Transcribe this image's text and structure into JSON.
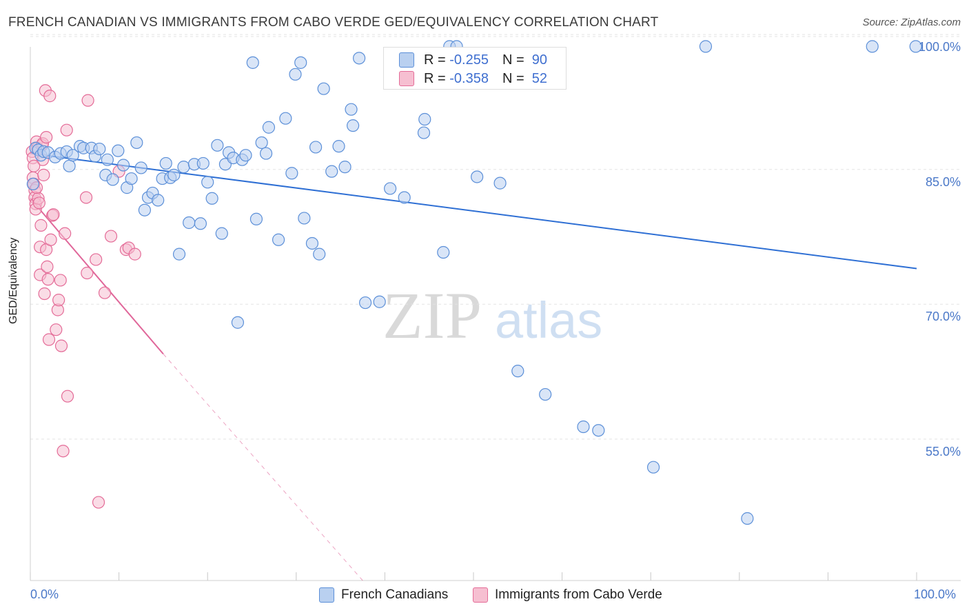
{
  "title": "FRENCH CANADIAN VS IMMIGRANTS FROM CABO VERDE GED/EQUIVALENCY CORRELATION CHART",
  "source": "Source: ZipAtlas.com",
  "watermark": {
    "zip": "ZIP",
    "atlas": "atlas"
  },
  "colors": {
    "blue": "#5b8fd8",
    "blue_fill": "#b9d0f0",
    "pink": "#e46b97",
    "pink_fill": "#f6bfd1",
    "trend_blue": "#2e6fd4",
    "trend_pink": "#e0679a",
    "axis_text": "#4a78c8"
  },
  "legend_top": {
    "r_label": "R =",
    "n_label": "N =",
    "series1": {
      "r": "-0.255",
      "n": "90"
    },
    "series2": {
      "r": "-0.358",
      "n": "52"
    }
  },
  "legend_bottom": {
    "series1": "French Canadians",
    "series2": "Immigrants from Cabo Verde"
  },
  "chart_data": {
    "type": "scatter",
    "xlabel": "",
    "ylabel": "GED/Equivalency",
    "xlim": [
      0,
      100
    ],
    "ylim": [
      40.5,
      102
    ],
    "x_tick_labels": [
      "0.0%",
      "100.0%"
    ],
    "y_ticks": [
      {
        "value": 100,
        "label": "100.0%"
      },
      {
        "value": 85,
        "label": "85.0%"
      },
      {
        "value": 70,
        "label": "70.0%"
      },
      {
        "value": 55,
        "label": "55.0%"
      }
    ],
    "grid": true,
    "legend_position": "top-center",
    "series": [
      {
        "name": "French Canadians",
        "color": "#5b8fd8",
        "trend": {
          "x0": 0,
          "y0": 88.0,
          "x1": 100,
          "y1": 75.2
        },
        "points": [
          [
            0.6,
            88.6
          ],
          [
            0.9,
            88.4
          ],
          [
            1.2,
            87.8
          ],
          [
            1.5,
            88.2
          ],
          [
            2.0,
            88.1
          ],
          [
            2.8,
            87.6
          ],
          [
            3.4,
            88.0
          ],
          [
            4.1,
            88.2
          ],
          [
            4.4,
            86.6
          ],
          [
            4.8,
            87.8
          ],
          [
            5.6,
            88.8
          ],
          [
            6.0,
            88.6
          ],
          [
            6.9,
            88.6
          ],
          [
            7.3,
            87.7
          ],
          [
            7.8,
            88.5
          ],
          [
            8.5,
            85.6
          ],
          [
            8.7,
            87.3
          ],
          [
            9.3,
            85.1
          ],
          [
            9.9,
            88.3
          ],
          [
            10.5,
            86.7
          ],
          [
            10.9,
            84.2
          ],
          [
            11.4,
            85.2
          ],
          [
            12.0,
            89.2
          ],
          [
            12.5,
            86.4
          ],
          [
            12.9,
            81.7
          ],
          [
            13.3,
            83.1
          ],
          [
            13.8,
            83.6
          ],
          [
            14.4,
            82.8
          ],
          [
            14.9,
            85.2
          ],
          [
            15.3,
            86.9
          ],
          [
            15.8,
            85.3
          ],
          [
            16.2,
            85.6
          ],
          [
            16.8,
            76.8
          ],
          [
            17.3,
            86.5
          ],
          [
            17.9,
            80.3
          ],
          [
            18.5,
            86.8
          ],
          [
            19.2,
            80.2
          ],
          [
            19.5,
            86.9
          ],
          [
            20.0,
            84.8
          ],
          [
            20.5,
            83.0
          ],
          [
            21.1,
            88.9
          ],
          [
            21.6,
            79.1
          ],
          [
            22.0,
            86.8
          ],
          [
            22.4,
            88.1
          ],
          [
            22.9,
            87.5
          ],
          [
            23.4,
            69.2
          ],
          [
            23.9,
            87.3
          ],
          [
            24.3,
            87.8
          ],
          [
            25.1,
            98.1
          ],
          [
            25.5,
            80.7
          ],
          [
            26.1,
            89.2
          ],
          [
            26.6,
            88.0
          ],
          [
            26.9,
            90.9
          ],
          [
            28.0,
            78.4
          ],
          [
            28.8,
            91.9
          ],
          [
            29.5,
            85.8
          ],
          [
            29.9,
            96.8
          ],
          [
            30.5,
            98.1
          ],
          [
            30.9,
            80.8
          ],
          [
            31.8,
            78.0
          ],
          [
            32.2,
            88.7
          ],
          [
            32.6,
            76.8
          ],
          [
            33.1,
            95.2
          ],
          [
            34.0,
            86.0
          ],
          [
            34.8,
            88.8
          ],
          [
            35.5,
            86.5
          ],
          [
            36.2,
            92.9
          ],
          [
            36.4,
            91.1
          ],
          [
            37.1,
            98.6
          ],
          [
            37.8,
            71.4
          ],
          [
            39.4,
            71.5
          ],
          [
            40.6,
            84.1
          ],
          [
            42.2,
            83.1
          ],
          [
            44.5,
            91.8
          ],
          [
            44.4,
            90.3
          ],
          [
            46.6,
            77.0
          ],
          [
            47.3,
            99.9
          ],
          [
            48.1,
            99.9
          ],
          [
            50.4,
            85.4
          ],
          [
            53.0,
            84.7
          ],
          [
            55.0,
            63.8
          ],
          [
            58.1,
            61.2
          ],
          [
            62.4,
            57.6
          ],
          [
            64.1,
            57.2
          ],
          [
            70.3,
            53.1
          ],
          [
            76.2,
            99.9
          ],
          [
            80.9,
            47.4
          ],
          [
            95.0,
            99.9
          ],
          [
            99.9,
            99.9
          ],
          [
            0.3,
            84.6
          ]
        ]
      },
      {
        "name": "Immigrants from Cabo Verde",
        "color": "#e46b97",
        "trend": {
          "x0": 0,
          "y0": 83.0,
          "x1": 15.0,
          "y1": 65.7,
          "dash_x1": 37.5,
          "dash_y1": 40.5
        },
        "points": [
          [
            0.2,
            88.2
          ],
          [
            0.3,
            87.5
          ],
          [
            0.3,
            85.3
          ],
          [
            0.4,
            84.6
          ],
          [
            0.5,
            83.9
          ],
          [
            0.5,
            83.1
          ],
          [
            0.6,
            82.4
          ],
          [
            0.6,
            81.8
          ],
          [
            0.7,
            89.3
          ],
          [
            0.8,
            88.6
          ],
          [
            0.9,
            83.0
          ],
          [
            1.0,
            82.5
          ],
          [
            1.1,
            77.6
          ],
          [
            1.1,
            74.5
          ],
          [
            1.2,
            80.0
          ],
          [
            1.3,
            88.9
          ],
          [
            1.4,
            87.3
          ],
          [
            1.4,
            89.1
          ],
          [
            1.5,
            85.6
          ],
          [
            1.6,
            72.4
          ],
          [
            1.7,
            95.0
          ],
          [
            1.8,
            89.8
          ],
          [
            1.8,
            77.3
          ],
          [
            1.9,
            75.4
          ],
          [
            2.0,
            74.0
          ],
          [
            2.1,
            67.3
          ],
          [
            2.2,
            94.4
          ],
          [
            2.3,
            78.4
          ],
          [
            2.5,
            81.1
          ],
          [
            2.6,
            81.2
          ],
          [
            2.9,
            68.4
          ],
          [
            3.1,
            70.6
          ],
          [
            3.2,
            71.7
          ],
          [
            3.4,
            73.9
          ],
          [
            3.5,
            66.6
          ],
          [
            3.7,
            54.9
          ],
          [
            3.9,
            79.1
          ],
          [
            4.1,
            90.6
          ],
          [
            4.2,
            61.0
          ],
          [
            6.3,
            83.1
          ],
          [
            6.4,
            74.7
          ],
          [
            6.5,
            93.9
          ],
          [
            7.4,
            76.2
          ],
          [
            7.7,
            49.2
          ],
          [
            8.4,
            72.5
          ],
          [
            9.1,
            78.8
          ],
          [
            10.0,
            86.0
          ],
          [
            10.8,
            77.3
          ],
          [
            11.1,
            77.5
          ],
          [
            11.8,
            76.8
          ],
          [
            0.4,
            86.6
          ],
          [
            0.7,
            84.2
          ]
        ]
      }
    ]
  }
}
